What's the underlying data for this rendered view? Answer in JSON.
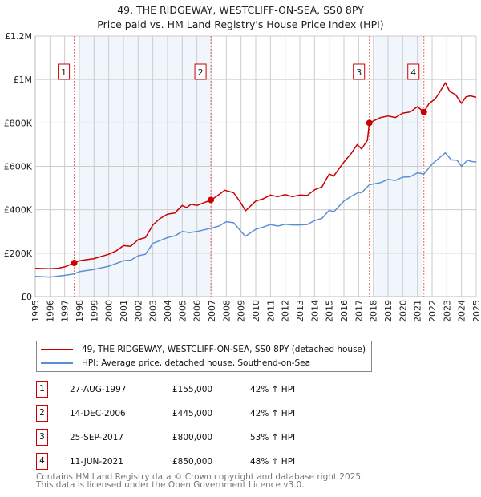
{
  "chart_data": {
    "type": "line",
    "title": "49, THE RIDGEWAY, WESTCLIFF-ON-SEA, SS0 8PY",
    "subtitle": "Price paid vs. HM Land Registry's House Price Index (HPI)",
    "xlim": [
      1995,
      2025
    ],
    "ylim": [
      0,
      1200000
    ],
    "y_ticks": [
      {
        "v": 0,
        "label": "£0"
      },
      {
        "v": 200000,
        "label": "£200K"
      },
      {
        "v": 400000,
        "label": "£400K"
      },
      {
        "v": 600000,
        "label": "£600K"
      },
      {
        "v": 800000,
        "label": "£800K"
      },
      {
        "v": 1000000,
        "label": "£1M"
      },
      {
        "v": 1200000,
        "label": "£1.2M"
      }
    ],
    "x_ticks": [
      "1995",
      "1996",
      "1997",
      "1998",
      "1999",
      "2000",
      "2001",
      "2002",
      "2003",
      "2004",
      "2005",
      "2006",
      "2007",
      "2008",
      "2009",
      "2010",
      "2011",
      "2012",
      "2013",
      "2014",
      "2015",
      "2016",
      "2017",
      "2018",
      "2019",
      "2020",
      "2021",
      "2022",
      "2023",
      "2024",
      "2025"
    ],
    "grid": true,
    "shaded_ranges": [
      [
        1998.0,
        2006.95
      ],
      [
        2018.1,
        2021.3
      ]
    ],
    "series": [
      {
        "name": "49, THE RIDGEWAY, WESTCLIFF-ON-SEA, SS0 8PY (detached house)",
        "color": "#cc0000",
        "points": [
          [
            1995,
            130000
          ],
          [
            1996,
            128000
          ],
          [
            1996.5,
            130000
          ],
          [
            1997,
            137000
          ],
          [
            1997.65,
            155000
          ],
          [
            1998,
            165000
          ],
          [
            1999,
            175000
          ],
          [
            2000,
            195000
          ],
          [
            2000.5,
            210000
          ],
          [
            2001,
            235000
          ],
          [
            2001.5,
            232000
          ],
          [
            2002,
            262000
          ],
          [
            2002.5,
            272000
          ],
          [
            2003,
            330000
          ],
          [
            2003.5,
            360000
          ],
          [
            2004,
            380000
          ],
          [
            2004.5,
            385000
          ],
          [
            2005,
            420000
          ],
          [
            2005.3,
            410000
          ],
          [
            2005.6,
            425000
          ],
          [
            2006,
            420000
          ],
          [
            2006.95,
            445000
          ],
          [
            2007.3,
            460000
          ],
          [
            2007.9,
            490000
          ],
          [
            2008.5,
            478000
          ],
          [
            2009,
            430000
          ],
          [
            2009.3,
            395000
          ],
          [
            2010,
            440000
          ],
          [
            2010.5,
            450000
          ],
          [
            2011,
            468000
          ],
          [
            2011.5,
            460000
          ],
          [
            2012,
            470000
          ],
          [
            2012.5,
            460000
          ],
          [
            2013,
            468000
          ],
          [
            2013.5,
            466000
          ],
          [
            2014,
            492000
          ],
          [
            2014.5,
            505000
          ],
          [
            2015,
            565000
          ],
          [
            2015.3,
            555000
          ],
          [
            2016,
            620000
          ],
          [
            2016.5,
            660000
          ],
          [
            2016.9,
            700000
          ],
          [
            2017.2,
            680000
          ],
          [
            2017.6,
            720000
          ],
          [
            2017.73,
            800000
          ],
          [
            2018.5,
            825000
          ],
          [
            2019,
            832000
          ],
          [
            2019.5,
            825000
          ],
          [
            2020,
            845000
          ],
          [
            2020.5,
            850000
          ],
          [
            2021,
            875000
          ],
          [
            2021.44,
            850000
          ],
          [
            2021.8,
            890000
          ],
          [
            2022.2,
            910000
          ],
          [
            2022.5,
            940000
          ],
          [
            2022.9,
            985000
          ],
          [
            2023.2,
            945000
          ],
          [
            2023.6,
            930000
          ],
          [
            2024,
            890000
          ],
          [
            2024.3,
            920000
          ],
          [
            2024.6,
            925000
          ],
          [
            2025,
            918000
          ]
        ]
      },
      {
        "name": "HPI: Average price, detached house, Southend-on-Sea",
        "color": "#5b8fd4",
        "points": [
          [
            1995,
            93000
          ],
          [
            1996,
            90000
          ],
          [
            1997,
            98000
          ],
          [
            1997.65,
            105000
          ],
          [
            1998,
            115000
          ],
          [
            1999,
            125000
          ],
          [
            2000,
            140000
          ],
          [
            2001,
            165000
          ],
          [
            2001.5,
            168000
          ],
          [
            2002,
            188000
          ],
          [
            2002.5,
            195000
          ],
          [
            2003,
            245000
          ],
          [
            2003.5,
            258000
          ],
          [
            2004,
            272000
          ],
          [
            2004.5,
            280000
          ],
          [
            2005,
            300000
          ],
          [
            2005.5,
            295000
          ],
          [
            2006,
            300000
          ],
          [
            2006.95,
            315000
          ],
          [
            2007.5,
            325000
          ],
          [
            2008,
            345000
          ],
          [
            2008.5,
            340000
          ],
          [
            2009,
            300000
          ],
          [
            2009.3,
            278000
          ],
          [
            2010,
            310000
          ],
          [
            2010.5,
            320000
          ],
          [
            2011,
            332000
          ],
          [
            2011.5,
            325000
          ],
          [
            2012,
            333000
          ],
          [
            2012.5,
            330000
          ],
          [
            2013,
            330000
          ],
          [
            2013.5,
            332000
          ],
          [
            2014,
            350000
          ],
          [
            2014.5,
            360000
          ],
          [
            2015,
            398000
          ],
          [
            2015.3,
            390000
          ],
          [
            2016,
            440000
          ],
          [
            2016.5,
            462000
          ],
          [
            2017,
            480000
          ],
          [
            2017.2,
            478000
          ],
          [
            2017.73,
            515000
          ],
          [
            2018.5,
            525000
          ],
          [
            2019,
            540000
          ],
          [
            2019.5,
            535000
          ],
          [
            2020,
            550000
          ],
          [
            2020.5,
            552000
          ],
          [
            2021,
            570000
          ],
          [
            2021.44,
            565000
          ],
          [
            2022,
            610000
          ],
          [
            2022.5,
            640000
          ],
          [
            2022.9,
            662000
          ],
          [
            2023.3,
            630000
          ],
          [
            2023.7,
            628000
          ],
          [
            2024,
            600000
          ],
          [
            2024.4,
            628000
          ],
          [
            2024.7,
            622000
          ],
          [
            2025,
            620000
          ]
        ]
      }
    ],
    "sales": [
      {
        "num": "1",
        "x": 1997.65,
        "price": 155000
      },
      {
        "num": "2",
        "x": 2006.95,
        "price": 445000
      },
      {
        "num": "3",
        "x": 2017.73,
        "price": 800000
      },
      {
        "num": "4",
        "x": 2021.44,
        "price": 850000
      }
    ]
  },
  "table": [
    {
      "num": "1",
      "date": "27-AUG-1997",
      "price": "£155,000",
      "hpi": "42% ↑ HPI"
    },
    {
      "num": "2",
      "date": "14-DEC-2006",
      "price": "£445,000",
      "hpi": "42% ↑ HPI"
    },
    {
      "num": "3",
      "date": "25-SEP-2017",
      "price": "£800,000",
      "hpi": "53% ↑ HPI"
    },
    {
      "num": "4",
      "date": "11-JUN-2021",
      "price": "£850,000",
      "hpi": "48% ↑ HPI"
    }
  ],
  "footer": {
    "line1": "Contains HM Land Registry data © Crown copyright and database right 2025.",
    "line2": "This data is licensed under the Open Government Licence v3.0."
  }
}
